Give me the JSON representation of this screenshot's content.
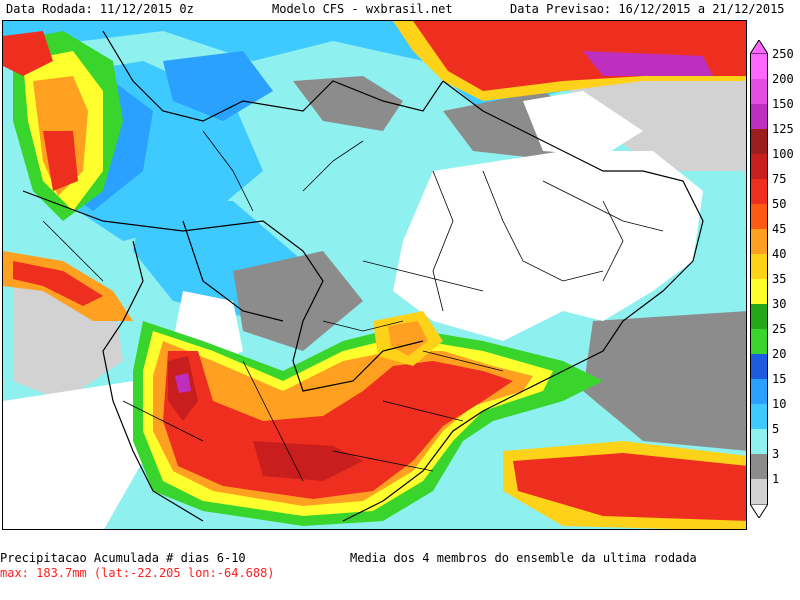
{
  "header": {
    "run_date": "Data Rodada: 11/12/2015 0z",
    "model": "Modelo CFS - wxbrasil.net",
    "forecast_date": "Data Previsao: 16/12/2015 a 21/12/2015"
  },
  "legend": {
    "items": [
      {
        "label": "250",
        "color": "#ff66ff"
      },
      {
        "label": "200",
        "color": "#e64ce6"
      },
      {
        "label": "150",
        "color": "#bf2fbf"
      },
      {
        "label": "125",
        "color": "#9b1f1f"
      },
      {
        "label": "100",
        "color": "#c81e1e"
      },
      {
        "label": "75",
        "color": "#ee2e1e"
      },
      {
        "label": "50",
        "color": "#ff5a12"
      },
      {
        "label": "45",
        "color": "#ffa020"
      },
      {
        "label": "40",
        "color": "#ffd21a"
      },
      {
        "label": "35",
        "color": "#ffff2e"
      },
      {
        "label": "30",
        "color": "#26a816"
      },
      {
        "label": "25",
        "color": "#39d52c"
      },
      {
        "label": "20",
        "color": "#1c5ce0"
      },
      {
        "label": "15",
        "color": "#2aa0ff"
      },
      {
        "label": "10",
        "color": "#3fcaff"
      },
      {
        "label": "5",
        "color": "#8ff0f0"
      },
      {
        "label": "3",
        "color": "#8c8c8c"
      },
      {
        "label": "1",
        "color": "#d2d2d2"
      }
    ]
  },
  "footer": {
    "title": "Precipitacao Acumulada # dias 6-10",
    "max": "max: 183.7mm (lat:-22.205 lon:-64.688)",
    "ensemble": "Media dos 4 membros do ensemble da ultima rodada"
  }
}
